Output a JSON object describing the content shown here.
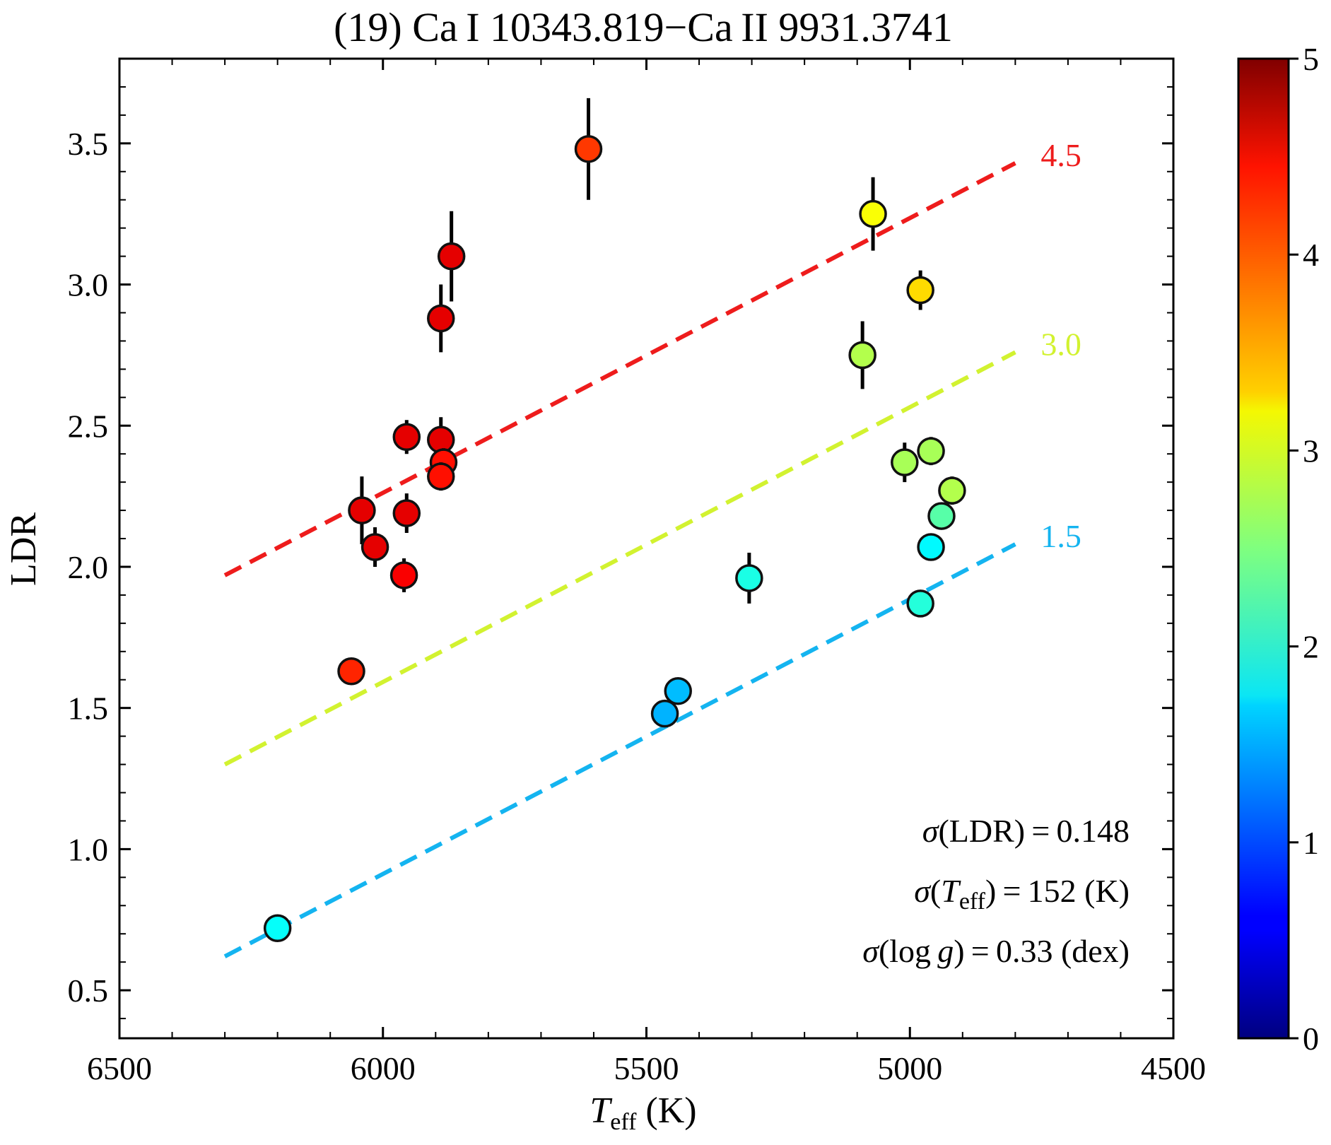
{
  "chart_data": {
    "type": "scatter",
    "title": "(19) Ca I 10343.819−Ca II 9931.3741",
    "xlabel": {
      "symbol": "T",
      "subscript": "eff",
      "unit": " (K)"
    },
    "ylabel": "LDR",
    "xlim": [
      6500,
      4500
    ],
    "ylim": [
      0.33,
      3.8
    ],
    "xticks": [
      6500,
      6000,
      5500,
      5000,
      4500
    ],
    "xtick_labels": [
      "6500",
      "6000",
      "5500",
      "5000",
      "4500"
    ],
    "yticks": [
      0.5,
      1.0,
      1.5,
      2.0,
      2.5,
      3.0,
      3.5
    ],
    "ytick_labels": [
      "0.5",
      "1.0",
      "1.5",
      "2.0",
      "2.5",
      "3.0",
      "3.5"
    ],
    "grid": false,
    "colorbar": {
      "label_hidden": true,
      "range": [
        0,
        5
      ],
      "ticks": [
        0,
        1,
        2,
        3,
        4,
        5
      ],
      "tick_labels": [
        "0",
        "1",
        "2",
        "3",
        "4",
        "5"
      ],
      "colormap": "jet"
    },
    "fit_lines": [
      {
        "label": "4.5",
        "logg": 4.5,
        "x": [
          6300,
          4800
        ],
        "y": [
          1.97,
          3.43
        ],
        "color": "#ee1c1c"
      },
      {
        "label": "3.0",
        "logg": 3.0,
        "x": [
          6300,
          4800
        ],
        "y": [
          1.3,
          2.76
        ],
        "color": "#d2f230"
      },
      {
        "label": "1.5",
        "logg": 1.5,
        "x": [
          6300,
          4800
        ],
        "y": [
          0.62,
          2.08
        ],
        "color": "#14b4f0"
      }
    ],
    "points": [
      {
        "teff": 5610,
        "ldr": 3.48,
        "err": 0.18,
        "logg": 4.1
      },
      {
        "teff": 5870,
        "ldr": 3.1,
        "err": 0.16,
        "logg": 4.5
      },
      {
        "teff": 5890,
        "ldr": 2.88,
        "err": 0.12,
        "logg": 4.5
      },
      {
        "teff": 5890,
        "ldr": 2.45,
        "err": 0.08,
        "logg": 4.5
      },
      {
        "teff": 5885,
        "ldr": 2.37,
        "err": 0.05,
        "logg": 4.3
      },
      {
        "teff": 5890,
        "ldr": 2.32,
        "err": 0.05,
        "logg": 4.3
      },
      {
        "teff": 5955,
        "ldr": 2.46,
        "err": 0.06,
        "logg": 4.5
      },
      {
        "teff": 5955,
        "ldr": 2.19,
        "err": 0.07,
        "logg": 4.5
      },
      {
        "teff": 6040,
        "ldr": 2.2,
        "err": 0.12,
        "logg": 4.5
      },
      {
        "teff": 6015,
        "ldr": 2.07,
        "err": 0.07,
        "logg": 4.5
      },
      {
        "teff": 5960,
        "ldr": 1.97,
        "err": 0.06,
        "logg": 4.4
      },
      {
        "teff": 6060,
        "ldr": 1.63,
        "err": 0.02,
        "logg": 4.2
      },
      {
        "teff": 5070,
        "ldr": 3.25,
        "err": 0.13,
        "logg": 3.1
      },
      {
        "teff": 4980,
        "ldr": 2.98,
        "err": 0.07,
        "logg": 3.3
      },
      {
        "teff": 5090,
        "ldr": 2.75,
        "err": 0.12,
        "logg": 2.75
      },
      {
        "teff": 4960,
        "ldr": 2.41,
        "err": 0.05,
        "logg": 2.7
      },
      {
        "teff": 5010,
        "ldr": 2.37,
        "err": 0.07,
        "logg": 2.7
      },
      {
        "teff": 4920,
        "ldr": 2.27,
        "err": 0.05,
        "logg": 2.75
      },
      {
        "teff": 4940,
        "ldr": 2.18,
        "err": 0.03,
        "logg": 2.3
      },
      {
        "teff": 4960,
        "ldr": 2.07,
        "err": 0.02,
        "logg": 1.85
      },
      {
        "teff": 4980,
        "ldr": 1.87,
        "err": 0.02,
        "logg": 2.05
      },
      {
        "teff": 5305,
        "ldr": 1.96,
        "err": 0.09,
        "logg": 2.0
      },
      {
        "teff": 5440,
        "ldr": 1.56,
        "err": 0.02,
        "logg": 1.55
      },
      {
        "teff": 5465,
        "ldr": 1.48,
        "err": 0.02,
        "logg": 1.5
      },
      {
        "teff": 6200,
        "ldr": 0.72,
        "err": 0.02,
        "logg": 1.9
      }
    ],
    "annotations": [
      {
        "sym": "σ",
        "pre": "(LDR)",
        "italic_mid": "",
        "post": "",
        "value": " = 0.148"
      },
      {
        "sym": "σ",
        "pre": "(",
        "italic_mid": "T",
        "sub": "eff",
        "post": ")",
        "value": " = 152 (K)"
      },
      {
        "sym": "σ",
        "pre": "(log ",
        "italic_mid": "g",
        "post": ")",
        "value": " = 0.33 (dex)"
      }
    ]
  }
}
